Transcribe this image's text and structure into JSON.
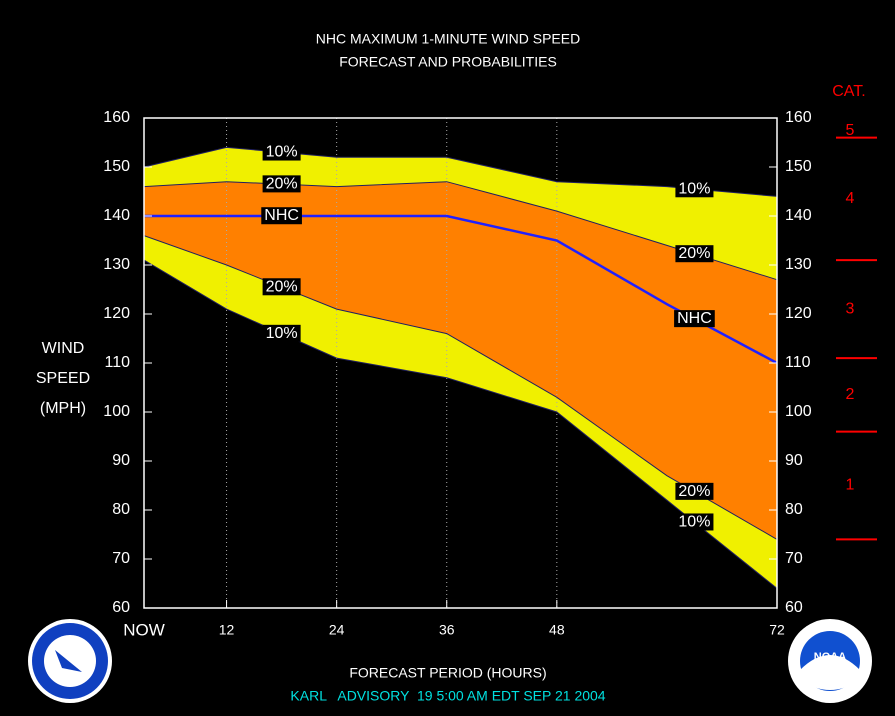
{
  "chart_data": {
    "type": "area",
    "title": "NHC MAXIMUM 1-MINUTE WIND SPEED",
    "subtitle": "FORECAST AND PROBABILITIES",
    "y_label": [
      "WIND",
      "SPEED",
      "(MPH)"
    ],
    "x_label": "FORECAST PERIOD (HOURS)",
    "footer": "KARL   ADVISORY  19 5:00 AM EDT SEP 21 2004",
    "x": [
      3,
      12,
      24,
      36,
      48,
      60,
      72
    ],
    "xlim": [
      3,
      72
    ],
    "xticks": [
      {
        "value": 3,
        "label": "NOW"
      },
      12,
      24,
      36,
      48,
      72
    ],
    "ylim": [
      60,
      160
    ],
    "yticks": [
      60,
      70,
      80,
      90,
      100,
      110,
      120,
      130,
      140,
      150,
      160
    ],
    "grid": true,
    "series": [
      {
        "name": "10%",
        "color": "#f0f000",
        "values": [
          150,
          154,
          152,
          152,
          147,
          146,
          144
        ]
      },
      {
        "name": "20%",
        "color": "#ff8000",
        "values": [
          146,
          147,
          146,
          147,
          141,
          134,
          127
        ]
      },
      {
        "name": "NHC",
        "color": "#2020ff",
        "values": [
          140,
          140,
          140,
          140,
          135,
          122,
          110
        ]
      },
      {
        "name": "20%",
        "color": "#ff8000",
        "values": [
          136,
          130,
          121,
          116,
          103,
          87,
          74
        ]
      },
      {
        "name": "10%",
        "color": "#f0f000",
        "values": [
          131,
          121,
          111,
          107,
          100,
          82,
          64
        ]
      }
    ],
    "saffir_simpson": {
      "title": "CAT.",
      "color": "#ff0000",
      "labels": [
        "5",
        "4",
        "3",
        "2",
        "1"
      ],
      "thresholds": [
        156,
        131,
        111,
        96,
        74
      ]
    }
  }
}
